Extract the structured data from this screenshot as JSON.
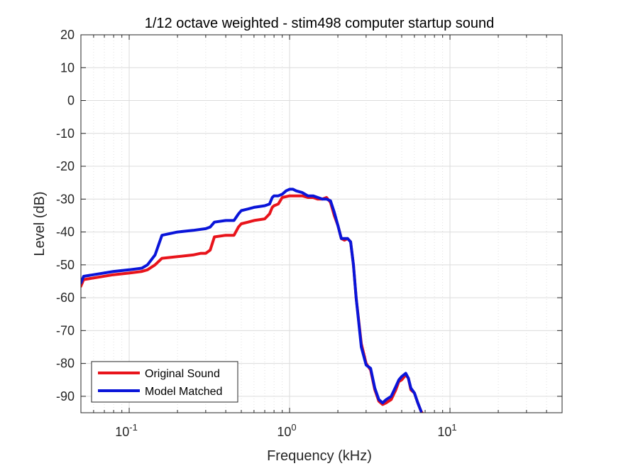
{
  "chart_data": {
    "type": "line",
    "title": "1/12 octave weighted - stim498 computer startup sound",
    "xlabel": "Frequency (kHz)",
    "ylabel": "Level (dB)",
    "xscale": "log",
    "xlim": [
      0.05,
      50
    ],
    "ylim": [
      -95,
      20
    ],
    "xticks": [
      {
        "value": 0.1,
        "base": "10",
        "exp": "-1"
      },
      {
        "value": 1,
        "base": "10",
        "exp": "0"
      },
      {
        "value": 10,
        "base": "10",
        "exp": "1"
      }
    ],
    "yticks": [
      "20",
      "10",
      "0",
      "-10",
      "-20",
      "-30",
      "-40",
      "-50",
      "-60",
      "-70",
      "-80",
      "-90"
    ],
    "grid": true,
    "legend_position": "bottom-left",
    "series": [
      {
        "name": "Original Sound",
        "color": "#e8141b",
        "x": [
          0.05,
          0.052,
          0.06,
          0.08,
          0.1,
          0.12,
          0.13,
          0.145,
          0.16,
          0.2,
          0.25,
          0.28,
          0.3,
          0.32,
          0.34,
          0.4,
          0.45,
          0.48,
          0.5,
          0.55,
          0.6,
          0.7,
          0.75,
          0.78,
          0.8,
          0.85,
          0.9,
          1.0,
          1.1,
          1.2,
          1.3,
          1.4,
          1.5,
          1.6,
          1.7,
          1.8,
          1.9,
          2.0,
          2.1,
          2.2,
          2.3,
          2.4,
          2.5,
          2.6,
          2.8,
          3.0,
          3.2,
          3.4,
          3.6,
          3.8,
          4.0,
          4.3,
          4.6,
          4.8,
          5.0,
          5.3,
          5.5,
          5.7,
          6.0,
          6.3,
          6.6,
          6.9
        ],
        "values": [
          -56.5,
          -54.5,
          -54.0,
          -53.0,
          -52.5,
          -52.0,
          -51.5,
          -50.0,
          -48.0,
          -47.5,
          -47.0,
          -46.5,
          -46.5,
          -45.5,
          -41.5,
          -41.0,
          -41.0,
          -38.5,
          -37.5,
          -37.0,
          -36.5,
          -36.0,
          -34.5,
          -32.5,
          -32.0,
          -31.5,
          -29.5,
          -29.0,
          -29.0,
          -29.0,
          -29.5,
          -29.5,
          -30.0,
          -30.0,
          -29.5,
          -31.0,
          -35.0,
          -38.0,
          -42.0,
          -42.5,
          -42.0,
          -43.0,
          -50.0,
          -60.0,
          -74.0,
          -80.0,
          -82.0,
          -88.0,
          -91.5,
          -92.5,
          -92.0,
          -91.0,
          -88.0,
          -85.5,
          -85.0,
          -83.5,
          -84.5,
          -88.0,
          -89.0,
          -92.0,
          -94.5,
          -96.0
        ]
      },
      {
        "name": "Model Matched",
        "color": "#0a15d9",
        "x": [
          0.05,
          0.052,
          0.06,
          0.08,
          0.1,
          0.12,
          0.13,
          0.145,
          0.16,
          0.2,
          0.25,
          0.3,
          0.32,
          0.34,
          0.4,
          0.45,
          0.48,
          0.5,
          0.55,
          0.6,
          0.7,
          0.75,
          0.78,
          0.8,
          0.85,
          0.9,
          0.95,
          1.0,
          1.05,
          1.1,
          1.2,
          1.3,
          1.4,
          1.5,
          1.6,
          1.7,
          1.8,
          1.9,
          2.0,
          2.1,
          2.2,
          2.3,
          2.4,
          2.5,
          2.6,
          2.8,
          3.0,
          3.2,
          3.4,
          3.6,
          3.8,
          4.0,
          4.3,
          4.6,
          4.8,
          5.0,
          5.3,
          5.5,
          5.7,
          6.0,
          6.3,
          6.6
        ],
        "values": [
          -55.5,
          -53.5,
          -53.0,
          -52.0,
          -51.5,
          -51.0,
          -50.0,
          -47.0,
          -41.0,
          -40.0,
          -39.5,
          -39.0,
          -38.5,
          -37.0,
          -36.5,
          -36.5,
          -34.5,
          -33.5,
          -33.0,
          -32.5,
          -32.0,
          -31.5,
          -29.5,
          -29.0,
          -29.0,
          -28.5,
          -27.5,
          -27.0,
          -27.0,
          -27.5,
          -28.0,
          -29.0,
          -29.0,
          -29.5,
          -30.0,
          -30.0,
          -30.5,
          -34.0,
          -38.0,
          -42.0,
          -42.0,
          -42.0,
          -43.0,
          -50.0,
          -60.0,
          -75.0,
          -80.5,
          -81.5,
          -87.5,
          -91.0,
          -92.0,
          -91.0,
          -90.0,
          -87.0,
          -85.0,
          -84.0,
          -83.0,
          -84.5,
          -87.5,
          -89.0,
          -92.0,
          -94.5
        ]
      }
    ]
  }
}
